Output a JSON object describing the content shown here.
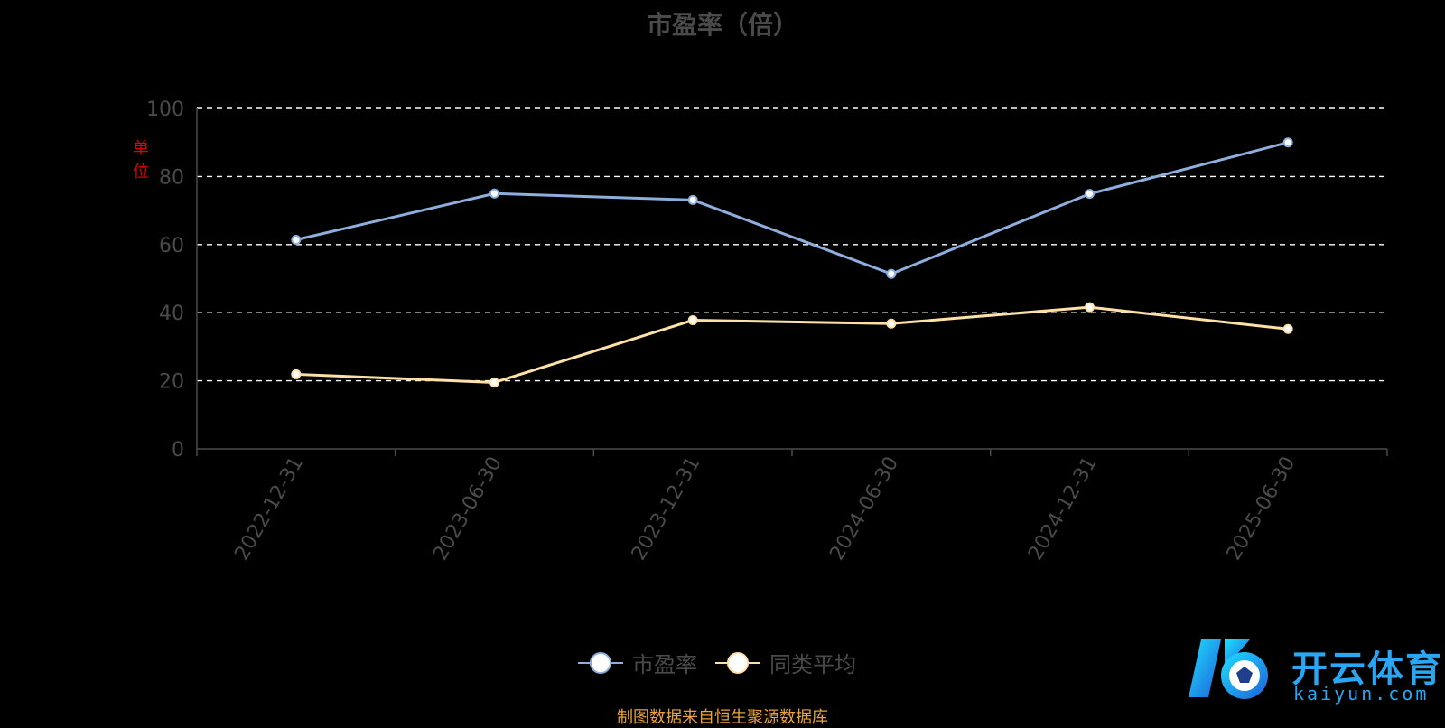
{
  "chart_data": {
    "type": "line",
    "title": "市盈率（倍）",
    "unit_label": "单位",
    "categories": [
      "2022-12-31",
      "2023-06-30",
      "2023-12-31",
      "2024-06-30",
      "2024-12-31",
      "2025-06-30"
    ],
    "series": [
      {
        "name": "市盈率",
        "color": "#8eaedd",
        "values": [
          61.4,
          75.0,
          73.1,
          51.4,
          74.9,
          90.0
        ]
      },
      {
        "name": "同类平均",
        "color": "#ffe0a6",
        "values": [
          21.9,
          19.5,
          37.8,
          36.8,
          41.6,
          35.2
        ]
      }
    ],
    "ylim": [
      0,
      100
    ],
    "yticks": [
      0,
      20,
      40,
      60,
      80,
      100
    ],
    "grid": true,
    "legend_position": "bottom"
  },
  "source_note": "制图数据来自恒生聚源数据库",
  "watermark": {
    "name": "开云体育",
    "domain": "kaiyun.com",
    "brand_color": "#2aa6f2"
  }
}
